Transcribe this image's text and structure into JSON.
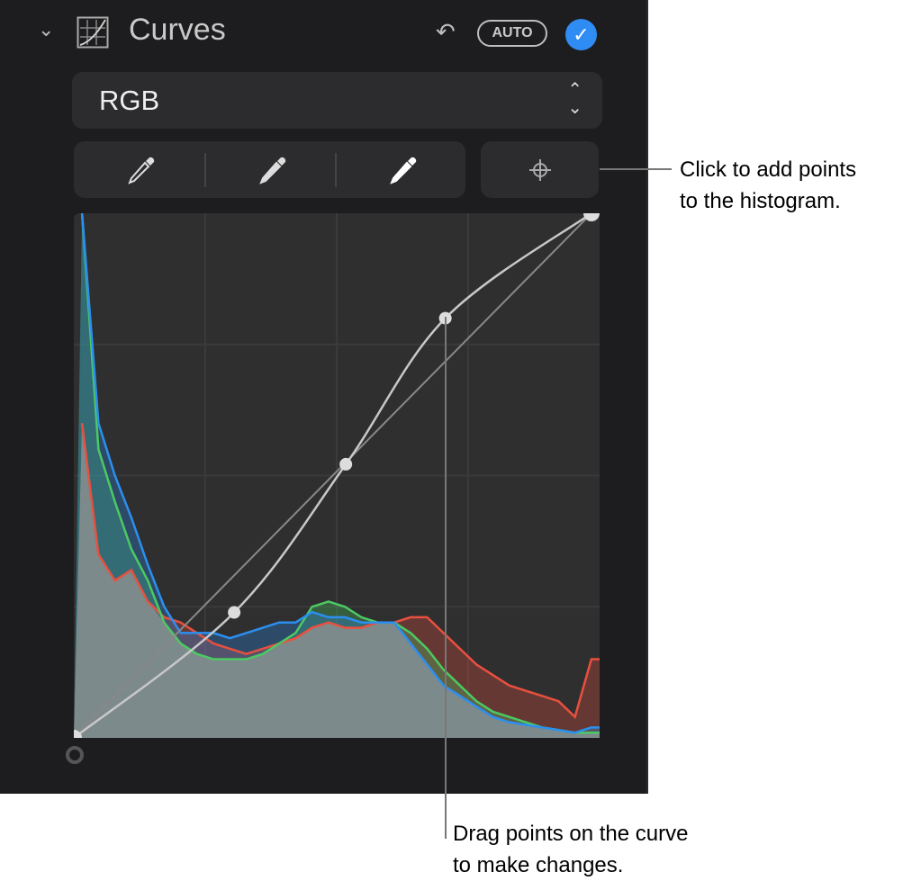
{
  "header": {
    "title": "Curves",
    "auto_label": "AUTO",
    "icon": "curves-icon",
    "collapse_icon": "chevron-down-icon",
    "undo_icon": "undo-icon",
    "check_icon": "checkmark-icon",
    "check_color": "#2f8cf3"
  },
  "channel_select": {
    "value": "RGB",
    "icon": "up-down-chevron-icon"
  },
  "tools": {
    "pickers": [
      "black-point-eyedropper",
      "mid-point-eyedropper",
      "white-point-eyedropper"
    ],
    "add_point_icon": "crosshair-icon"
  },
  "curve": {
    "points": [
      [
        0,
        0
      ],
      [
        79,
        61
      ],
      [
        134,
        133
      ],
      [
        183,
        204
      ],
      [
        255,
        255
      ]
    ]
  },
  "histogram": {
    "colors": {
      "red": "#e8503f",
      "green": "#4cc963",
      "blue": "#2b8ff0",
      "luma": "#7d8a8c"
    },
    "red": [
      0.6,
      0.35,
      0.3,
      0.32,
      0.26,
      0.23,
      0.22,
      0.2,
      0.18,
      0.17,
      0.16,
      0.17,
      0.18,
      0.19,
      0.21,
      0.22,
      0.21,
      0.21,
      0.22,
      0.22,
      0.23,
      0.23,
      0.2,
      0.17,
      0.14,
      0.12,
      0.1,
      0.09,
      0.08,
      0.07,
      0.04,
      0.15
    ],
    "green": [
      1.0,
      0.55,
      0.45,
      0.36,
      0.3,
      0.22,
      0.18,
      0.16,
      0.15,
      0.15,
      0.15,
      0.16,
      0.18,
      0.2,
      0.25,
      0.26,
      0.25,
      0.23,
      0.22,
      0.22,
      0.2,
      0.17,
      0.13,
      0.1,
      0.07,
      0.05,
      0.04,
      0.03,
      0.02,
      0.015,
      0.01,
      0.01
    ],
    "blue": [
      1.0,
      0.6,
      0.5,
      0.42,
      0.33,
      0.25,
      0.2,
      0.2,
      0.2,
      0.19,
      0.2,
      0.21,
      0.22,
      0.22,
      0.24,
      0.23,
      0.23,
      0.22,
      0.22,
      0.22,
      0.18,
      0.14,
      0.1,
      0.08,
      0.06,
      0.04,
      0.03,
      0.025,
      0.02,
      0.015,
      0.01,
      0.02
    ]
  },
  "callouts": {
    "add_points": [
      "Click to add points",
      "to the histogram."
    ],
    "drag_points": [
      "Drag points on the curve",
      "to make changes."
    ]
  }
}
